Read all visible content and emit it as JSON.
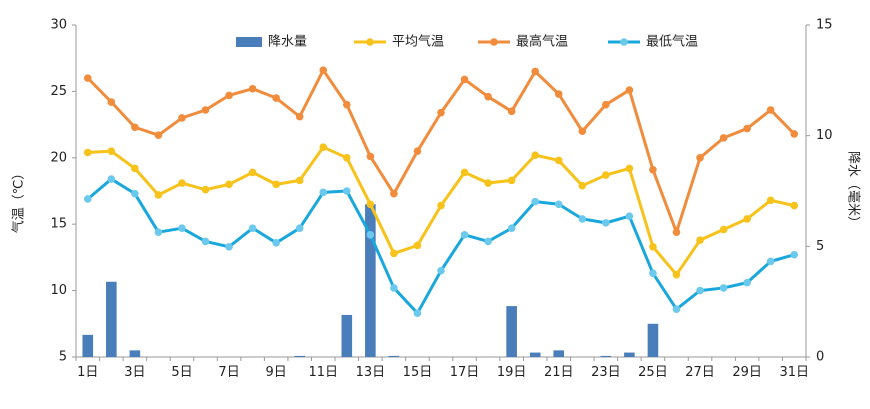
{
  "chart_data": {
    "type": "bar+line",
    "title": "",
    "x": {
      "categories": [
        "1日",
        "2日",
        "3日",
        "4日",
        "5日",
        "6日",
        "7日",
        "8日",
        "9日",
        "10日",
        "11日",
        "12日",
        "13日",
        "14日",
        "15日",
        "16日",
        "17日",
        "18日",
        "19日",
        "20日",
        "21日",
        "22日",
        "23日",
        "24日",
        "25日",
        "26日",
        "27日",
        "28日",
        "29日",
        "30日",
        "31日"
      ],
      "tick_labels": [
        "1日",
        "3日",
        "5日",
        "7日",
        "9日",
        "11日",
        "13日",
        "15日",
        "17日",
        "19日",
        "21日",
        "23日",
        "25日",
        "27日",
        "29日",
        "31日"
      ]
    },
    "y_left": {
      "label": "气温（℃）",
      "lim": [
        5,
        30
      ],
      "ticks": [
        5,
        10,
        15,
        20,
        25,
        30
      ]
    },
    "y_right": {
      "label": "降水（毫米）",
      "lim": [
        0,
        15
      ],
      "ticks": [
        0,
        5,
        10,
        15
      ]
    },
    "bar_series": {
      "name": "降水量",
      "axis": "right",
      "color": "#4a7ebb",
      "values": [
        1.0,
        3.4,
        0.3,
        0,
        0,
        0,
        0,
        0,
        0,
        0.05,
        0,
        1.9,
        6.9,
        0.05,
        0,
        0,
        0,
        0,
        2.3,
        0.2,
        0.3,
        0,
        0.05,
        0.2,
        1.5,
        0,
        0,
        0,
        0,
        0,
        0
      ]
    },
    "line_series": [
      {
        "name": "平均气温",
        "axis": "left",
        "color": "#f7c21a",
        "values": [
          20.4,
          20.5,
          19.2,
          17.2,
          18.1,
          17.6,
          18.0,
          18.9,
          18.0,
          18.3,
          20.8,
          20.0,
          16.5,
          12.8,
          13.4,
          16.4,
          18.9,
          18.1,
          18.3,
          20.2,
          19.8,
          17.9,
          18.7,
          19.2,
          13.3,
          11.2,
          13.8,
          14.6,
          15.4,
          16.8,
          16.4
        ]
      },
      {
        "name": "最高气温",
        "axis": "left",
        "color": "#f08c3c",
        "values": [
          26.0,
          24.2,
          22.3,
          21.7,
          23.0,
          23.6,
          24.7,
          25.2,
          24.5,
          23.1,
          26.6,
          24.0,
          20.1,
          17.3,
          20.5,
          23.4,
          25.9,
          24.6,
          23.5,
          26.5,
          24.8,
          22.0,
          24.0,
          25.1,
          19.1,
          14.4,
          20.0,
          21.5,
          22.2,
          23.6,
          21.8
        ]
      },
      {
        "name": "最低气温",
        "axis": "left",
        "color": "#1aa7dc",
        "values": [
          16.9,
          18.4,
          17.3,
          14.4,
          14.7,
          13.7,
          13.3,
          14.7,
          13.6,
          14.7,
          17.4,
          17.5,
          14.2,
          10.2,
          8.3,
          11.5,
          14.2,
          13.7,
          14.7,
          16.7,
          16.5,
          15.4,
          15.1,
          15.6,
          11.3,
          8.6,
          10.0,
          10.2,
          10.6,
          12.2,
          12.7
        ]
      }
    ],
    "legend": {
      "position": "top",
      "items": [
        {
          "label": "降水量",
          "kind": "bar",
          "color": "#4a7ebb"
        },
        {
          "label": "平均气温",
          "kind": "line",
          "color": "#f7c21a",
          "marker_color": "#f7c21a"
        },
        {
          "label": "最高气温",
          "kind": "line",
          "color": "#f08c3c",
          "marker_color": "#f08c3c"
        },
        {
          "label": "最低气温",
          "kind": "line",
          "color": "#1aa7dc",
          "marker_color": "#6cc9ee"
        }
      ]
    },
    "grid": false
  }
}
